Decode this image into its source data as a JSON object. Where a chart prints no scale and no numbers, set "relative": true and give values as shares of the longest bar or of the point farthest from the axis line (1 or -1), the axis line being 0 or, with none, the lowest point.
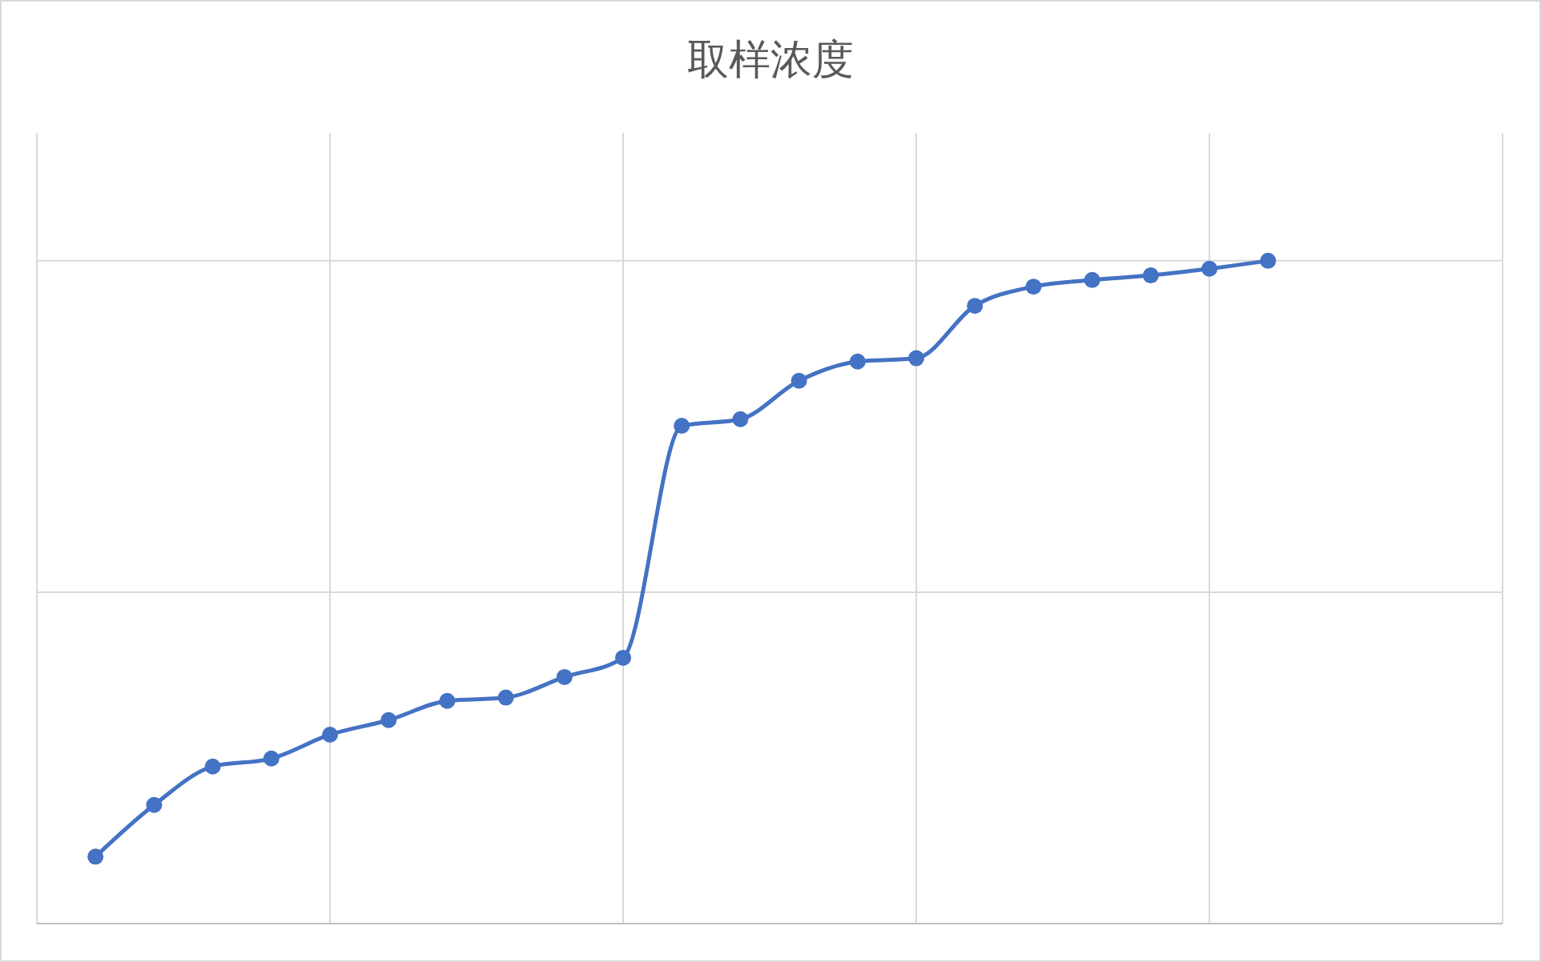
{
  "chart_data": {
    "type": "line",
    "title": "取样浓度",
    "relative": true,
    "categories": [
      null,
      null,
      null,
      null,
      null,
      null,
      null,
      null,
      null,
      null,
      null,
      null,
      null,
      null,
      null,
      null,
      null,
      null,
      null,
      null,
      null
    ],
    "series": [
      {
        "color": "#4472c4",
        "values": [
          0.101,
          0.179,
          0.237,
          0.249,
          0.285,
          0.307,
          0.336,
          0.341,
          0.372,
          0.401,
          0.751,
          0.761,
          0.819,
          0.848,
          0.853,
          0.932,
          0.961,
          0.971,
          0.978,
          0.988,
          1.0
        ]
      }
    ],
    "grid": true,
    "marker": "circle",
    "line_style": "solid"
  }
}
